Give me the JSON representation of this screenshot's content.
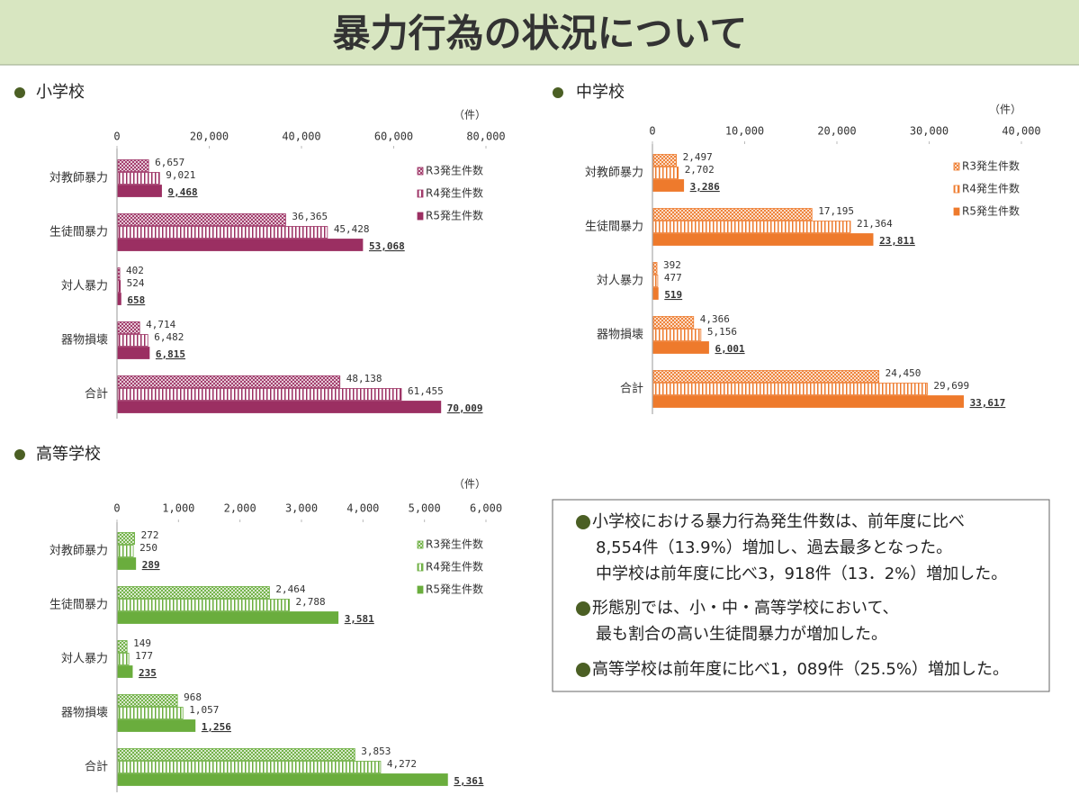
{
  "header": {
    "title": "暴力行為の状況について"
  },
  "chart_data": [
    {
      "type": "hbar",
      "title": "小学校",
      "xlabel": "（件）",
      "categories": [
        "対教師暴力",
        "生徒間暴力",
        "対人暴力",
        "器物損壊",
        "合計"
      ],
      "series": [
        {
          "name": "R3発生件数",
          "color": "#9b2f62",
          "pattern": "crosshatch",
          "values": [
            6657,
            36365,
            402,
            4714,
            48138
          ],
          "value_labels": [
            "6,657",
            "36,365",
            "402",
            "4,714",
            "48,138"
          ]
        },
        {
          "name": "R4発生件数",
          "color": "#9b2f62",
          "pattern": "stripes",
          "values": [
            9021,
            45428,
            524,
            6482,
            61455
          ],
          "value_labels": [
            "9,021",
            "45,428",
            "524",
            "6,482",
            "61,455"
          ]
        },
        {
          "name": "R5発生件数",
          "color": "#9b2f62",
          "pattern": "solid",
          "values": [
            9468,
            53068,
            658,
            6815,
            70009
          ],
          "value_labels": [
            "9,468",
            "53,068",
            "658",
            "6,815",
            "70,009"
          ]
        }
      ],
      "xlim": [
        0,
        80000
      ],
      "xticks": [
        0,
        {
          "value": 20000,
          "label": "20,000"
        },
        {
          "value": 40000,
          "label": "40,000"
        },
        {
          "value": 60000,
          "label": "60,000"
        },
        {
          "value": 80000,
          "label": "80,000"
        }
      ]
    },
    {
      "type": "hbar",
      "title": "中学校",
      "xlabel": "（件）",
      "categories": [
        "対教師暴力",
        "生徒間暴力",
        "対人暴力",
        "器物損壊",
        "合計"
      ],
      "series": [
        {
          "name": "R3発生件数",
          "color": "#ee7a2c",
          "pattern": "crosshatch",
          "values": [
            2497,
            17195,
            392,
            4366,
            24450
          ],
          "value_labels": [
            "2,497",
            "17,195",
            "392",
            "4,366",
            "24,450"
          ]
        },
        {
          "name": "R4発生件数",
          "color": "#ee7a2c",
          "pattern": "stripes",
          "values": [
            2702,
            21364,
            477,
            5156,
            29699
          ],
          "value_labels": [
            "2,702",
            "21,364",
            "477",
            "5,156",
            "29,699"
          ]
        },
        {
          "name": "R5発生件数",
          "color": "#ee7a2c",
          "pattern": "solid",
          "values": [
            3286,
            23811,
            519,
            6001,
            33617
          ],
          "value_labels": [
            "3,286",
            "23,811",
            "519",
            "6,001",
            "33,617"
          ]
        }
      ],
      "xlim": [
        0,
        40000
      ],
      "xticks": [
        0,
        {
          "value": 10000,
          "label": "10,000"
        },
        {
          "value": 20000,
          "label": "20,000"
        },
        {
          "value": 30000,
          "label": "30,000"
        },
        {
          "value": 40000,
          "label": "40,000"
        }
      ]
    },
    {
      "type": "hbar",
      "title": "高等学校",
      "xlabel": "（件）",
      "categories": [
        "対教師暴力",
        "生徒間暴力",
        "対人暴力",
        "器物損壊",
        "合計"
      ],
      "series": [
        {
          "name": "R3発生件数",
          "color": "#6aad3d",
          "pattern": "crosshatch",
          "values": [
            272,
            2464,
            149,
            968,
            3853
          ],
          "value_labels": [
            "272",
            "2,464",
            "149",
            "968",
            "3,853"
          ]
        },
        {
          "name": "R4発生件数",
          "color": "#6aad3d",
          "pattern": "stripes",
          "values": [
            250,
            2788,
            177,
            1057,
            4272
          ],
          "value_labels": [
            "250",
            "2,788",
            "177",
            "1,057",
            "4,272"
          ]
        },
        {
          "name": "R5発生件数",
          "color": "#6aad3d",
          "pattern": "solid",
          "values": [
            289,
            3581,
            235,
            1256,
            5361
          ],
          "value_labels": [
            "289",
            "3,581",
            "235",
            "1,256",
            "5,361"
          ]
        }
      ],
      "xlim": [
        0,
        6000
      ],
      "xticks": [
        0,
        {
          "value": 1000,
          "label": "1,000"
        },
        {
          "value": 2000,
          "label": "2,000"
        },
        {
          "value": 3000,
          "label": "3,000"
        },
        {
          "value": 4000,
          "label": "4,000"
        },
        {
          "value": 5000,
          "label": "5,000"
        },
        {
          "value": 6000,
          "label": "6,000"
        }
      ]
    }
  ],
  "summary": {
    "paragraphs": [
      [
        "小学校における暴力行為発生件数は、前年度に比べ",
        "8,554件（13.9%）増加し、過去最多となった。",
        "中学校は前年度に比べ3，918件（13．2%）増加した。"
      ],
      [
        "形態別では、小・中・高等学校において、",
        "最も割合の高い生徒間暴力が増加した。"
      ],
      [
        "高等学校は前年度に比べ1，089件（25.5%）増加した。"
      ]
    ]
  }
}
